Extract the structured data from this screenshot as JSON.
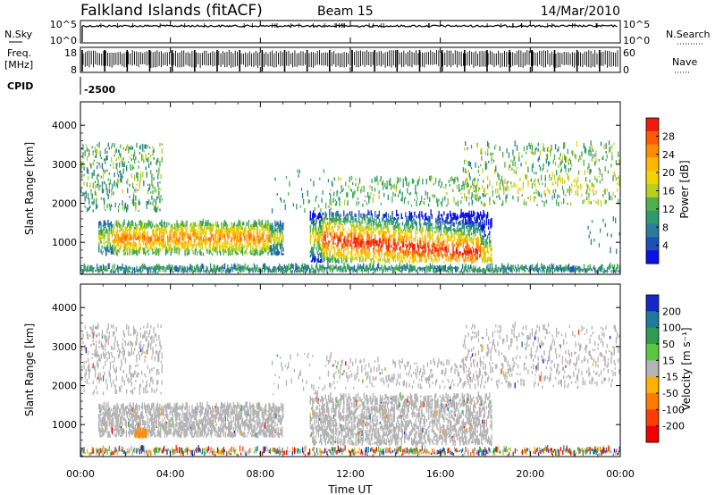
{
  "header": {
    "station": "Falkland Islands (fitACF)",
    "beam": "Beam 15",
    "date": "14/Mar/2010"
  },
  "noise_panel": {
    "left_label": "N.Sky",
    "right_label": "N.Search",
    "top_tick": "10^5",
    "bottom_tick": "10^0"
  },
  "freq_panel": {
    "left_label_line1": "Freq.",
    "left_label_line2": "[MHz]",
    "left_ticks": [
      "18",
      "8"
    ],
    "right_ticks": [
      "60",
      "0"
    ],
    "right_label": "Nave"
  },
  "cpid": {
    "label": "CPID",
    "value": "-2500"
  },
  "x_axis": {
    "label": "Time UT",
    "ticks": [
      "00:00",
      "04:00",
      "08:00",
      "12:00",
      "16:00",
      "20:00",
      "00:00"
    ]
  },
  "power_colorbar": {
    "label": "Power [dB]",
    "ticks": [
      "28",
      "24",
      "20",
      "16",
      "12",
      "8",
      "4"
    ],
    "colors": [
      "#f21a0c",
      "#ff5a00",
      "#ff8c00",
      "#ffb700",
      "#f2d400",
      "#b8cf1e",
      "#4fb04f",
      "#2f9a6c",
      "#2a7c9a",
      "#1c4fb8",
      "#0a10e8"
    ]
  },
  "velocity_colorbar": {
    "label": "Velocity [m s⁻¹]",
    "ticks": [
      "200",
      "100",
      "50",
      "15",
      "-15",
      "-50",
      "-100",
      "-200"
    ],
    "colors": [
      "#1428c8",
      "#1e7a9c",
      "#2e9a52",
      "#5ac83c",
      "#b4b4b4",
      "#ffb000",
      "#ff7a00",
      "#ff3c00",
      "#f00000"
    ]
  },
  "chart_data": [
    {
      "type": "heatmap",
      "title": "Falkland Islands (fitACF)",
      "xlabel": "Time UT",
      "ylabel": "Slant Range [km]",
      "y_ticks": [
        1000,
        2000,
        3000,
        4000
      ],
      "ylim": [
        180,
        4600
      ],
      "xlim_hours": [
        0,
        24
      ],
      "colorbar_label": "Power [dB]",
      "colorbar_range": [
        0,
        32
      ],
      "features": [
        {
          "name": "daytime near-range band",
          "t_start_h": 0.0,
          "t_end_h": 9.0,
          "range_km": [
            700,
            1400
          ],
          "peak_db": 24
        },
        {
          "name": "afternoon strong band",
          "t_start_h": 10.3,
          "t_end_h": 18.2,
          "range_km": [
            450,
            1650
          ],
          "peak_db": 30
        },
        {
          "name": "far range scatter",
          "t_start_h": 0.0,
          "t_end_h": 24.0,
          "range_km": [
            1800,
            3400
          ],
          "peak_db": 14
        }
      ]
    },
    {
      "type": "heatmap",
      "xlabel": "Time UT",
      "ylabel": "Slant Range [km]",
      "y_ticks": [
        1000,
        2000,
        3000,
        4000
      ],
      "ylim": [
        180,
        4600
      ],
      "xlim_hours": [
        0,
        24
      ],
      "colorbar_label": "Velocity [m s⁻¹]",
      "colorbar_range": [
        -250,
        250
      ],
      "features": [
        {
          "name": "ground scatter (grey)",
          "t_start_h": 0.0,
          "t_end_h": 24.0,
          "range_km": [
            500,
            3200
          ],
          "velocity": 0
        }
      ]
    }
  ]
}
